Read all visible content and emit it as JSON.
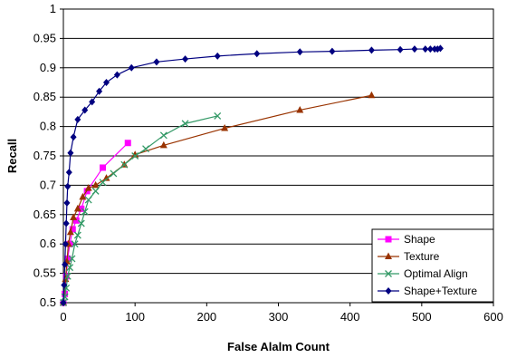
{
  "chart_data": {
    "type": "line",
    "xlabel": "False Alalm Count",
    "ylabel": "Recall",
    "xlim": [
      0,
      600
    ],
    "ylim": [
      0.5,
      1
    ],
    "x_ticks": [
      0,
      100,
      200,
      300,
      400,
      500,
      600
    ],
    "y_ticks": [
      0.5,
      0.55,
      0.6,
      0.65,
      0.7,
      0.75,
      0.8,
      0.85,
      0.9,
      0.95,
      1
    ],
    "y_tick_labels": [
      "0.5",
      "0.55",
      "0.6",
      "0.65",
      "0.7",
      "0.75",
      "0.8",
      "0.85",
      "0.9",
      "0.95",
      "1"
    ],
    "grid": "horizontal",
    "legend_position": "bottom-right",
    "series": [
      {
        "name": "Shape",
        "color": "#ff00ff",
        "marker": "square",
        "x": [
          0,
          2,
          4,
          6,
          9,
          13,
          18,
          25,
          33,
          55,
          90
        ],
        "y": [
          0.5,
          0.515,
          0.545,
          0.575,
          0.6,
          0.625,
          0.64,
          0.66,
          0.69,
          0.73,
          0.772
        ]
      },
      {
        "name": "Texture",
        "color": "#993300",
        "marker": "triangle",
        "x": [
          0,
          3,
          5,
          7,
          10,
          14,
          20,
          27,
          35,
          45,
          60,
          85,
          100,
          140,
          225,
          330,
          430
        ],
        "y": [
          0.5,
          0.54,
          0.57,
          0.6,
          0.62,
          0.645,
          0.66,
          0.68,
          0.695,
          0.7,
          0.712,
          0.735,
          0.752,
          0.768,
          0.797,
          0.828,
          0.853
        ]
      },
      {
        "name": "Optimal Align",
        "color": "#339966",
        "marker": "x",
        "x": [
          0,
          2,
          4,
          6,
          9,
          12,
          16,
          20,
          25,
          30,
          35,
          45,
          55,
          70,
          85,
          100,
          115,
          140,
          170,
          215
        ],
        "y": [
          0.5,
          0.51,
          0.525,
          0.545,
          0.56,
          0.575,
          0.6,
          0.615,
          0.635,
          0.655,
          0.675,
          0.69,
          0.705,
          0.72,
          0.735,
          0.75,
          0.762,
          0.785,
          0.805,
          0.818
        ]
      },
      {
        "name": "Shape+Texture",
        "color": "#000080",
        "marker": "diamond",
        "x": [
          0,
          1,
          2,
          3,
          4,
          5,
          6,
          8,
          10,
          14,
          20,
          30,
          40,
          50,
          60,
          75,
          95,
          130,
          170,
          215,
          270,
          330,
          375,
          430,
          470,
          490,
          505,
          512,
          518,
          522,
          526
        ],
        "y": [
          0.5,
          0.53,
          0.565,
          0.6,
          0.635,
          0.67,
          0.698,
          0.722,
          0.755,
          0.782,
          0.812,
          0.828,
          0.842,
          0.86,
          0.875,
          0.888,
          0.9,
          0.91,
          0.915,
          0.92,
          0.924,
          0.927,
          0.928,
          0.93,
          0.931,
          0.932,
          0.932,
          0.932,
          0.932,
          0.932,
          0.933
        ]
      }
    ]
  }
}
